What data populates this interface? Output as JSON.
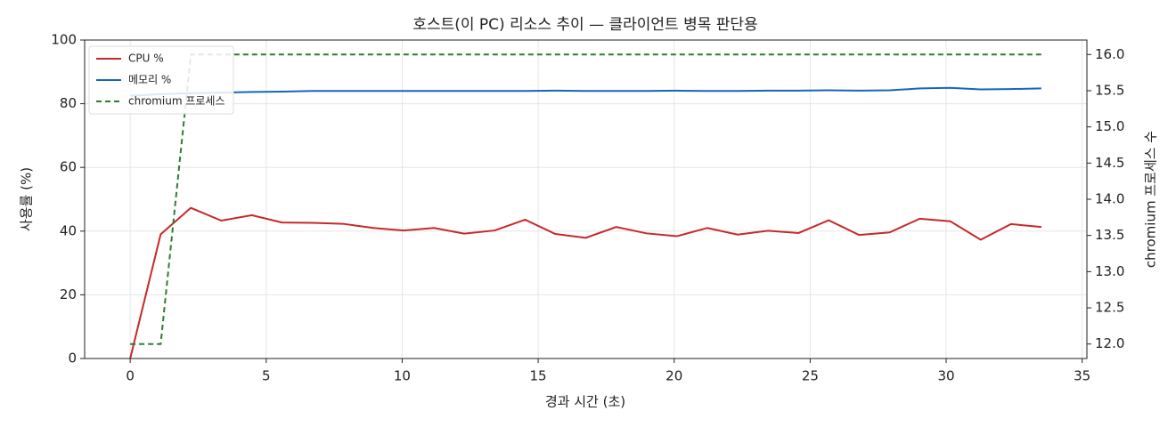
{
  "chart_data": {
    "type": "line",
    "title": "호스트(이 PC) 리소스 추이 — 클라이언트 병목 판단용",
    "xlabel": "경과 시간 (초)",
    "ylabel": "사용률 (%)",
    "y2label": "chromium 프로세스 수",
    "x": [
      0,
      1.12,
      2.23,
      3.35,
      4.47,
      5.58,
      6.7,
      7.82,
      8.93,
      10.05,
      11.17,
      12.28,
      13.4,
      14.52,
      15.63,
      16.75,
      17.87,
      18.98,
      20.1,
      21.22,
      22.33,
      23.45,
      24.57,
      25.68,
      26.8,
      27.92,
      29.03,
      30.15,
      31.27,
      32.38,
      33.5
    ],
    "series": [
      {
        "name": "CPU %",
        "color": "#c62828",
        "dash": false,
        "values": [
          0,
          39,
          47.3,
          43.3,
          45,
          42.7,
          42.6,
          42.3,
          41,
          40.2,
          41,
          39.2,
          40.2,
          43.6,
          39.1,
          37.9,
          41.3,
          39.3,
          38.4,
          41,
          38.9,
          40.1,
          39.4,
          43.4,
          38.8,
          39.6,
          43.9,
          43.1,
          37.3,
          42.2,
          41.3
        ]
      },
      {
        "name": "메모리 %",
        "color": "#1565c0",
        "dash": false,
        "values": [
          82.5,
          83,
          83.3,
          83.5,
          83.7,
          83.8,
          84,
          84,
          84,
          84,
          84,
          84,
          84,
          84,
          84.1,
          84,
          84,
          84,
          84.1,
          84,
          84,
          84.1,
          84.1,
          84.2,
          84.1,
          84.2,
          84.8,
          85,
          84.5,
          84.6,
          84.8
        ]
      },
      {
        "name": "chromium 프로세스",
        "color": "#2e7d32",
        "dash": true,
        "axis": "y2",
        "values": [
          12,
          12,
          16,
          16,
          16,
          16,
          16,
          16,
          16,
          16,
          16,
          16,
          16,
          16,
          16,
          16,
          16,
          16,
          16,
          16,
          16,
          16,
          16,
          16,
          16,
          16,
          16,
          16,
          16,
          16,
          16
        ]
      }
    ],
    "xlim": [
      -1.675,
      35.175
    ],
    "xticks": [
      0,
      5,
      10,
      15,
      20,
      25,
      30,
      35
    ],
    "ylim": [
      0,
      100
    ],
    "yticks": [
      0,
      20,
      40,
      60,
      80,
      100
    ],
    "y2lim": [
      11.8,
      16.2
    ],
    "y2ticks": [
      {
        "value": 12,
        "label": "12.0"
      },
      12.5,
      {
        "value": 13,
        "label": "13.0"
      },
      13.5,
      {
        "value": 14,
        "label": "14.0"
      },
      14.5,
      {
        "value": 15,
        "label": "15.0"
      },
      15.5,
      {
        "value": 16,
        "label": "16.0"
      }
    ],
    "grid": true,
    "legend": "upper left"
  }
}
